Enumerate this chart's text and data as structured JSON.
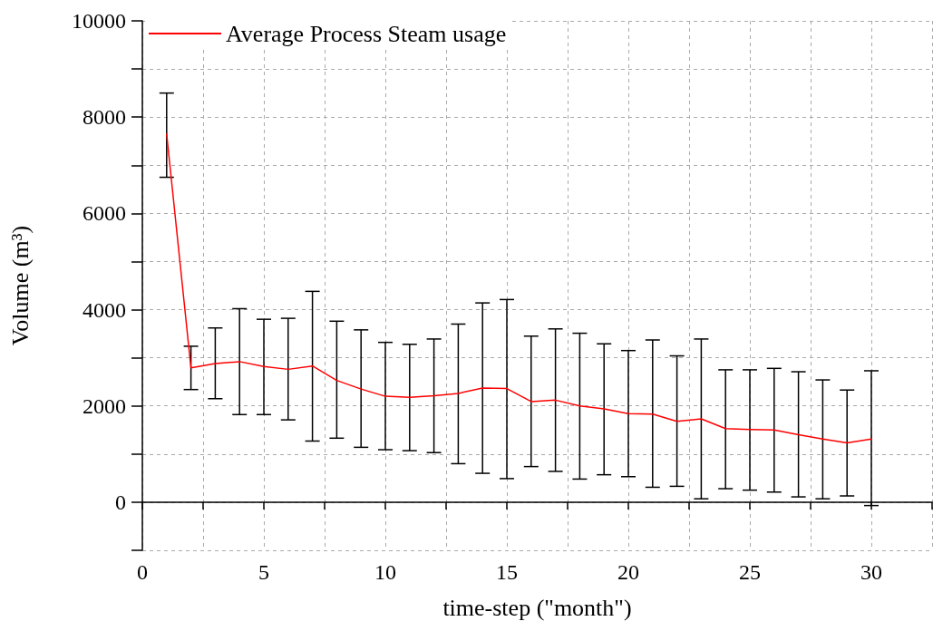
{
  "chart_data": {
    "type": "line",
    "xlabel": "time-step (\"month\")",
    "ylabel": "Volume (m³)",
    "x": [
      1,
      2,
      3,
      4,
      5,
      6,
      7,
      8,
      9,
      10,
      11,
      12,
      13,
      14,
      15,
      16,
      17,
      18,
      19,
      20,
      21,
      22,
      23,
      24,
      25,
      26,
      27,
      28,
      29,
      30
    ],
    "series": [
      {
        "name": "Average Process Steam usage",
        "color": "#ff0000",
        "values": [
          7650,
          2790,
          2880,
          2920,
          2820,
          2760,
          2830,
          2530,
          2350,
          2200,
          2180,
          2210,
          2260,
          2370,
          2360,
          2090,
          2120,
          2000,
          1940,
          1840,
          1830,
          1680,
          1730,
          1530,
          1510,
          1500,
          1400,
          1310,
          1230,
          1310
        ],
        "errors": [
          [
            6750,
            8500
          ],
          [
            2340,
            3240
          ],
          [
            2150,
            3620
          ],
          [
            1820,
            4020
          ],
          [
            1820,
            3800
          ],
          [
            1710,
            3820
          ],
          [
            1270,
            4380
          ],
          [
            1330,
            3760
          ],
          [
            1140,
            3580
          ],
          [
            1090,
            3320
          ],
          [
            1070,
            3280
          ],
          [
            1030,
            3390
          ],
          [
            800,
            3700
          ],
          [
            600,
            4140
          ],
          [
            490,
            4210
          ],
          [
            740,
            3450
          ],
          [
            640,
            3600
          ],
          [
            480,
            3510
          ],
          [
            570,
            3290
          ],
          [
            530,
            3150
          ],
          [
            310,
            3370
          ],
          [
            330,
            3040
          ],
          [
            70,
            3390
          ],
          [
            280,
            2750
          ],
          [
            250,
            2750
          ],
          [
            210,
            2780
          ],
          [
            110,
            2710
          ],
          [
            70,
            2540
          ],
          [
            130,
            2330
          ],
          [
            -70,
            2730
          ]
        ]
      }
    ],
    "xlim": [
      0,
      32.5
    ],
    "xticks": [
      0,
      {
        "value": 2.5,
        "label": null
      },
      5,
      {
        "value": 7.5,
        "label": null
      },
      10,
      {
        "value": 12.5,
        "label": null
      },
      15,
      {
        "value": 17.5,
        "label": null
      },
      20,
      {
        "value": 22.5,
        "label": null
      },
      25,
      {
        "value": 27.5,
        "label": null
      },
      30,
      {
        "value": 32.5,
        "label": null
      }
    ],
    "ylim": [
      -1000,
      10000
    ],
    "yticks": [
      {
        "value": -1000,
        "label": null
      },
      0,
      {
        "value": 1000,
        "label": null
      },
      2000,
      {
        "value": 3000,
        "label": null
      },
      4000,
      {
        "value": 5000,
        "label": null
      },
      6000,
      {
        "value": 7000,
        "label": null
      },
      8000,
      {
        "value": 9000,
        "label": null
      },
      10000
    ],
    "grid": true,
    "legend": "top left",
    "marker": "none",
    "line_style": "solid"
  }
}
